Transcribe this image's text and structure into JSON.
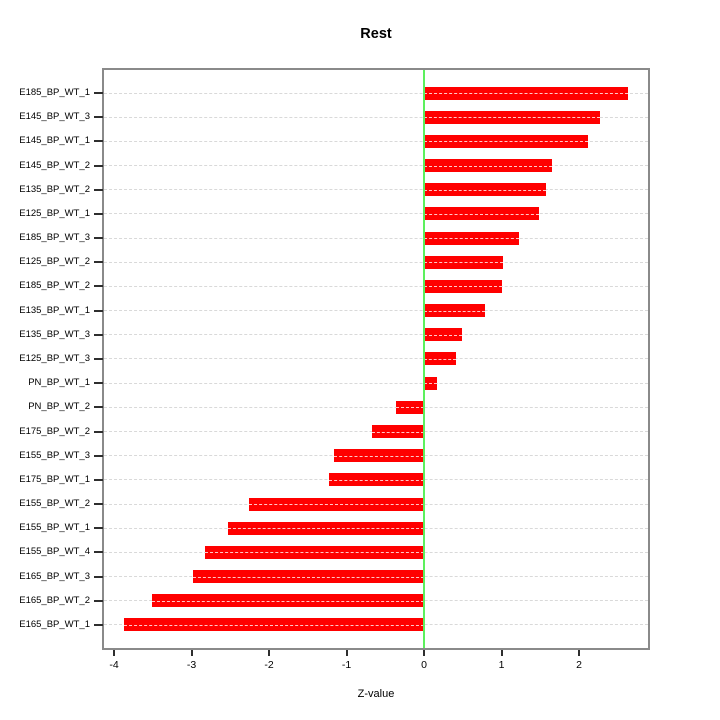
{
  "chart_data": {
    "type": "bar",
    "orientation": "horizontal",
    "title": "Rest",
    "xlabel": "Z-value",
    "ylabel": "",
    "legend_position": "none",
    "grid": "horizontal dotted lightgray, one line per category",
    "zero_reference_line": 0,
    "categories": [
      "E185_BP_WT_1",
      "E145_BP_WT_3",
      "E145_BP_WT_1",
      "E145_BP_WT_2",
      "E135_BP_WT_2",
      "E125_BP_WT_1",
      "E185_BP_WT_3",
      "E125_BP_WT_2",
      "E185_BP_WT_2",
      "E135_BP_WT_1",
      "E135_BP_WT_3",
      "E125_BP_WT_3",
      "PN_BP_WT_1",
      "PN_BP_WT_2",
      "E175_BP_WT_2",
      "E155_BP_WT_3",
      "E175_BP_WT_1",
      "E155_BP_WT_2",
      "E155_BP_WT_1",
      "E155_BP_WT_4",
      "E165_BP_WT_3",
      "E165_BP_WT_2",
      "E165_BP_WT_1"
    ],
    "values": [
      2.63,
      2.27,
      2.12,
      1.65,
      1.58,
      1.48,
      1.23,
      1.02,
      1.01,
      0.79,
      0.49,
      0.41,
      0.17,
      -0.36,
      -0.67,
      -1.16,
      -1.22,
      -2.26,
      -2.53,
      -2.83,
      -2.98,
      -3.51,
      -3.87
    ],
    "x_ticks": [
      -4,
      -3,
      -2,
      -1,
      0,
      1,
      2
    ],
    "xlim": [
      -4.13,
      2.89
    ],
    "colors": {
      "bar": "#ff0000",
      "zero_line": "#5df05d",
      "gridline": "#d9d9d9",
      "plot_border": "#8a8a8a",
      "text": "#000000",
      "background": "#ffffff"
    }
  }
}
